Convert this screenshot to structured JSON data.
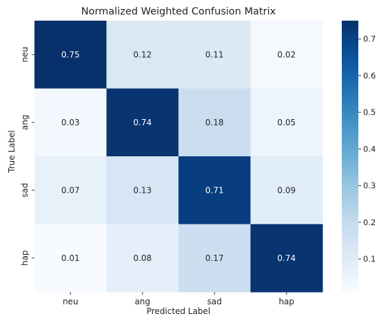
{
  "chart_data": {
    "type": "heatmap",
    "title": "Normalized Weighted Confusion Matrix",
    "xlabel": "Predicted Label",
    "ylabel": "True Label",
    "x_categories": [
      "neu",
      "ang",
      "sad",
      "hap"
    ],
    "y_categories": [
      "neu",
      "ang",
      "sad",
      "hap"
    ],
    "values": [
      [
        0.75,
        0.12,
        0.11,
        0.02
      ],
      [
        0.03,
        0.74,
        0.18,
        0.05
      ],
      [
        0.07,
        0.13,
        0.71,
        0.09
      ],
      [
        0.01,
        0.08,
        0.17,
        0.74
      ]
    ],
    "cell_labels": [
      [
        "0.75",
        "0.12",
        "0.11",
        "0.02"
      ],
      [
        "0.03",
        "0.74",
        "0.18",
        "0.05"
      ],
      [
        "0.07",
        "0.13",
        "0.71",
        "0.09"
      ],
      [
        "0.01",
        "0.08",
        "0.17",
        "0.74"
      ]
    ],
    "colormap": "Blues",
    "colorbar": {
      "vmin": 0.01,
      "vmax": 0.75,
      "ticks": [
        0.1,
        0.2,
        0.3,
        0.4,
        0.5,
        0.6,
        0.7
      ],
      "tick_labels": [
        "0.1",
        "0.2",
        "0.3",
        "0.4",
        "0.5",
        "0.6",
        "0.7"
      ]
    },
    "grid": false
  }
}
